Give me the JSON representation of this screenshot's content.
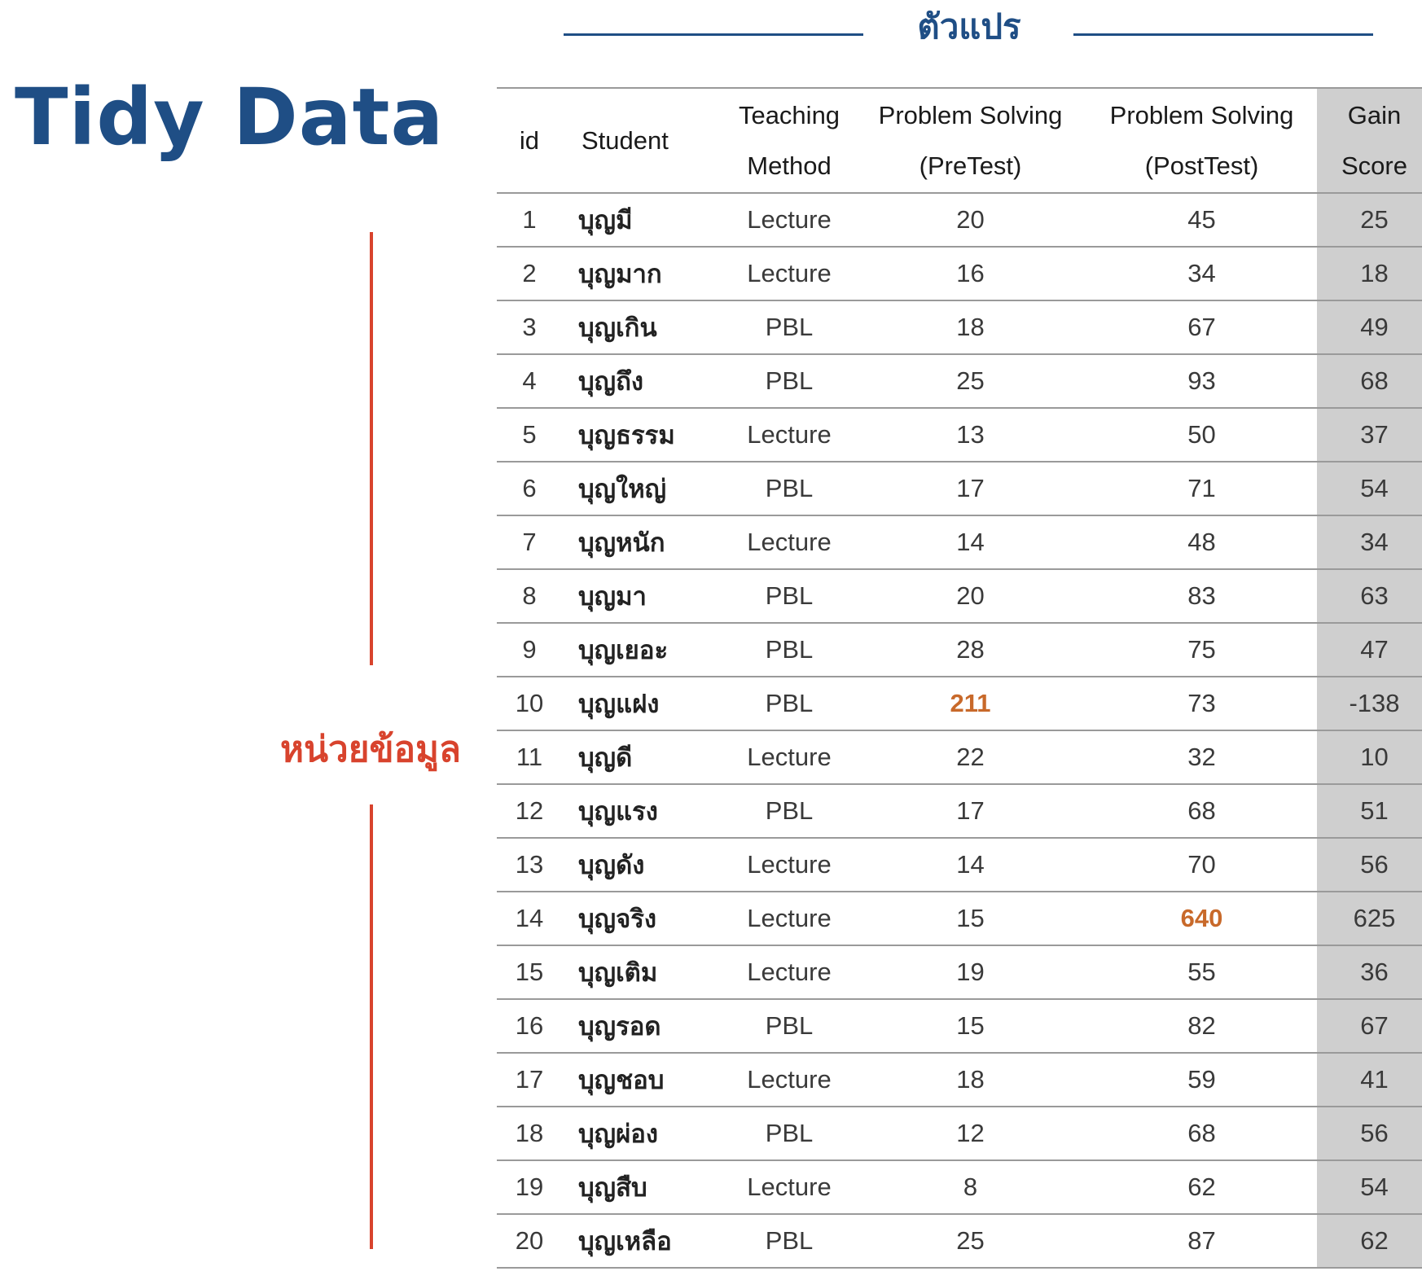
{
  "title": "Tidy Data",
  "variables_label": "ตัวแปร",
  "units_label": "หน่วยข้อมูล",
  "colors": {
    "title_blue": "#1f4e85",
    "unit_red": "#d8432d",
    "outlier_orange": "#c8692a",
    "gain_column_bg": "#cfcfcf"
  },
  "table": {
    "headers": {
      "id": "id",
      "student": "Student",
      "method_line1": "Teaching",
      "method_line2": "Method",
      "pre_line1": "Problem Solving",
      "pre_line2": "(PreTest)",
      "post_line1": "Problem Solving",
      "post_line2": "(PostTest)",
      "gain_line1": "Gain",
      "gain_line2": "Score"
    },
    "rows": [
      {
        "id": "1",
        "student": "บุญมี",
        "method": "Lecture",
        "pre": "20",
        "post": "45",
        "gain": "25"
      },
      {
        "id": "2",
        "student": "บุญมาก",
        "method": "Lecture",
        "pre": "16",
        "post": "34",
        "gain": "18"
      },
      {
        "id": "3",
        "student": "บุญเกิน",
        "method": "PBL",
        "pre": "18",
        "post": "67",
        "gain": "49"
      },
      {
        "id": "4",
        "student": "บุญถึง",
        "method": "PBL",
        "pre": "25",
        "post": "93",
        "gain": "68"
      },
      {
        "id": "5",
        "student": "บุญธรรม",
        "method": "Lecture",
        "pre": "13",
        "post": "50",
        "gain": "37"
      },
      {
        "id": "6",
        "student": "บุญใหญ่",
        "method": "PBL",
        "pre": "17",
        "post": "71",
        "gain": "54"
      },
      {
        "id": "7",
        "student": "บุญหนัก",
        "method": "Lecture",
        "pre": "14",
        "post": "48",
        "gain": "34"
      },
      {
        "id": "8",
        "student": "บุญมา",
        "method": "PBL",
        "pre": "20",
        "post": "83",
        "gain": "63"
      },
      {
        "id": "9",
        "student": "บุญเยอะ",
        "method": "PBL",
        "pre": "28",
        "post": "75",
        "gain": "47"
      },
      {
        "id": "10",
        "student": "บุญแฝง",
        "method": "PBL",
        "pre": "211",
        "post": "73",
        "gain": "-138",
        "pre_outlier": true
      },
      {
        "id": "11",
        "student": "บุญดี",
        "method": "Lecture",
        "pre": "22",
        "post": "32",
        "gain": "10"
      },
      {
        "id": "12",
        "student": "บุญแรง",
        "method": "PBL",
        "pre": "17",
        "post": "68",
        "gain": "51"
      },
      {
        "id": "13",
        "student": "บุญดัง",
        "method": "Lecture",
        "pre": "14",
        "post": "70",
        "gain": "56"
      },
      {
        "id": "14",
        "student": "บุญจริง",
        "method": "Lecture",
        "pre": "15",
        "post": "640",
        "gain": "625",
        "post_outlier": true
      },
      {
        "id": "15",
        "student": "บุญเติม",
        "method": "Lecture",
        "pre": "19",
        "post": "55",
        "gain": "36"
      },
      {
        "id": "16",
        "student": "บุญรอด",
        "method": "PBL",
        "pre": "15",
        "post": "82",
        "gain": "67"
      },
      {
        "id": "17",
        "student": "บุญชอบ",
        "method": "Lecture",
        "pre": "18",
        "post": "59",
        "gain": "41"
      },
      {
        "id": "18",
        "student": "บุญผ่อง",
        "method": "PBL",
        "pre": "12",
        "post": "68",
        "gain": "56"
      },
      {
        "id": "19",
        "student": "บุญสืบ",
        "method": "Lecture",
        "pre": "8",
        "post": "62",
        "gain": "54"
      },
      {
        "id": "20",
        "student": "บุญเหลือ",
        "method": "PBL",
        "pre": "25",
        "post": "87",
        "gain": "62"
      }
    ]
  }
}
